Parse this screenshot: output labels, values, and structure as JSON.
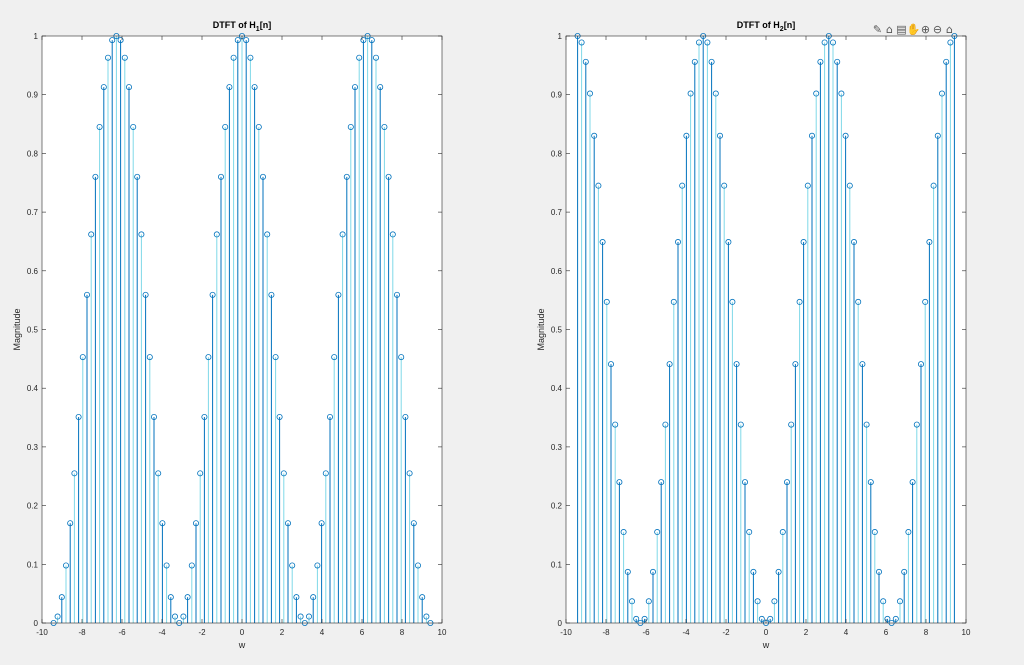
{
  "figure": {
    "toolbar": [
      {
        "name": "brush-icon",
        "glyph": "✎"
      },
      {
        "name": "data-tips-icon",
        "glyph": "⌂"
      },
      {
        "name": "export-icon",
        "glyph": "▤"
      },
      {
        "name": "pan-hand-icon",
        "glyph": "✋"
      },
      {
        "name": "zoom-in-icon",
        "glyph": "⊕"
      },
      {
        "name": "zoom-out-icon",
        "glyph": "⊖"
      },
      {
        "name": "home-icon",
        "glyph": "⌂"
      }
    ]
  },
  "chart_data": [
    {
      "type": "stem",
      "title": "DTFT of H",
      "title_sub": "1",
      "title_suffix": "[n]",
      "xlabel": "w",
      "ylabel": "Magnitude",
      "xlim": [
        -10,
        10
      ],
      "ylim": [
        0,
        1
      ],
      "xticks": [
        -10,
        -8,
        -6,
        -4,
        -2,
        0,
        2,
        4,
        6,
        8,
        10
      ],
      "yticks": [
        0,
        0.1,
        0.2,
        0.3,
        0.4,
        0.5,
        0.6,
        0.7,
        0.8,
        0.9,
        1
      ],
      "ytick_labels": [
        "0",
        "0.1",
        "0.2",
        "0.3",
        "0.4",
        "0.5",
        "0.6",
        "0.7",
        "0.8",
        "0.9",
        "1"
      ],
      "grid": false,
      "colors": {
        "stem_primary": "#0072bd",
        "stem_secondary": "#7fd9e8",
        "marker": "#0072bd",
        "axes_bg": "#ffffff"
      },
      "x": [
        -9.42,
        -9.22,
        -9.01,
        -8.8,
        -8.59,
        -8.38,
        -8.17,
        -7.96,
        -7.75,
        -7.54,
        -7.33,
        -7.12,
        -6.91,
        -6.7,
        -6.49,
        -6.28,
        -6.07,
        -5.86,
        -5.65,
        -5.44,
        -5.24,
        -5.03,
        -4.82,
        -4.61,
        -4.4,
        -4.19,
        -3.98,
        -3.77,
        -3.56,
        -3.35,
        -3.14,
        -2.93,
        -2.72,
        -2.51,
        -2.3,
        -2.09,
        -1.88,
        -1.68,
        -1.47,
        -1.26,
        -1.05,
        -0.84,
        -0.63,
        -0.42,
        -0.21,
        0.0,
        0.21,
        0.42,
        0.63,
        0.84,
        1.05,
        1.26,
        1.47,
        1.68,
        1.88,
        2.09,
        2.3,
        2.51,
        2.72,
        2.93,
        3.14,
        3.35,
        3.56,
        3.77,
        3.98,
        4.19,
        4.4,
        4.61,
        4.82,
        5.03,
        5.24,
        5.44,
        5.65,
        5.86,
        6.07,
        6.28,
        6.49,
        6.7,
        6.91,
        7.12,
        7.33,
        7.54,
        7.75,
        7.96,
        8.17,
        8.38,
        8.59,
        8.8,
        9.01,
        9.22,
        9.42
      ],
      "y": [
        0.0,
        0.011,
        0.044,
        0.098,
        0.17,
        0.255,
        0.351,
        0.453,
        0.559,
        0.662,
        0.76,
        0.845,
        0.913,
        0.963,
        0.993,
        1.0,
        0.993,
        0.963,
        0.913,
        0.845,
        0.76,
        0.662,
        0.559,
        0.453,
        0.351,
        0.255,
        0.17,
        0.098,
        0.044,
        0.011,
        0.0,
        0.011,
        0.044,
        0.098,
        0.17,
        0.255,
        0.351,
        0.453,
        0.559,
        0.662,
        0.76,
        0.845,
        0.913,
        0.963,
        0.993,
        1.0,
        0.993,
        0.963,
        0.913,
        0.845,
        0.76,
        0.662,
        0.559,
        0.453,
        0.351,
        0.255,
        0.17,
        0.098,
        0.044,
        0.011,
        0.0,
        0.011,
        0.044,
        0.098,
        0.17,
        0.255,
        0.351,
        0.453,
        0.559,
        0.662,
        0.76,
        0.845,
        0.913,
        0.963,
        0.993,
        1.0,
        0.993,
        0.963,
        0.913,
        0.845,
        0.76,
        0.662,
        0.559,
        0.453,
        0.351,
        0.255,
        0.17,
        0.098,
        0.044,
        0.011,
        0.0
      ]
    },
    {
      "type": "stem",
      "title": "DTFT of H",
      "title_sub": "2",
      "title_suffix": "[n]",
      "xlabel": "w",
      "ylabel": "Magnitude",
      "xlim": [
        -10,
        10
      ],
      "ylim": [
        0,
        1
      ],
      "xticks": [
        -10,
        -8,
        -6,
        -4,
        -2,
        0,
        2,
        4,
        6,
        8,
        10
      ],
      "yticks": [
        0,
        0.1,
        0.2,
        0.3,
        0.4,
        0.5,
        0.6,
        0.7,
        0.8,
        0.9,
        1
      ],
      "ytick_labels": [
        "0",
        "0.1",
        "0.2",
        "0.3",
        "0.4",
        "0.5",
        "0.6",
        "0.7",
        "0.8",
        "0.9",
        "1"
      ],
      "grid": false,
      "colors": {
        "stem_primary": "#0072bd",
        "stem_secondary": "#7fd9e8",
        "marker": "#0072bd",
        "axes_bg": "#ffffff"
      },
      "x": [
        -9.42,
        -9.22,
        -9.01,
        -8.8,
        -8.59,
        -8.38,
        -8.17,
        -7.96,
        -7.75,
        -7.54,
        -7.33,
        -7.12,
        -6.91,
        -6.7,
        -6.49,
        -6.28,
        -6.07,
        -5.86,
        -5.65,
        -5.44,
        -5.24,
        -5.03,
        -4.82,
        -4.61,
        -4.4,
        -4.19,
        -3.98,
        -3.77,
        -3.56,
        -3.35,
        -3.14,
        -2.93,
        -2.72,
        -2.51,
        -2.3,
        -2.09,
        -1.88,
        -1.68,
        -1.47,
        -1.26,
        -1.05,
        -0.84,
        -0.63,
        -0.42,
        -0.21,
        0.0,
        0.21,
        0.42,
        0.63,
        0.84,
        1.05,
        1.26,
        1.47,
        1.68,
        1.88,
        2.09,
        2.3,
        2.51,
        2.72,
        2.93,
        3.14,
        3.35,
        3.56,
        3.77,
        3.98,
        4.19,
        4.4,
        4.61,
        4.82,
        5.03,
        5.24,
        5.44,
        5.65,
        5.86,
        6.07,
        6.28,
        6.49,
        6.7,
        6.91,
        7.12,
        7.33,
        7.54,
        7.75,
        7.96,
        8.17,
        8.38,
        8.59,
        8.8,
        9.01,
        9.22,
        9.42
      ],
      "y": [
        1.0,
        0.989,
        0.956,
        0.902,
        0.83,
        0.745,
        0.649,
        0.547,
        0.441,
        0.338,
        0.24,
        0.155,
        0.087,
        0.037,
        0.007,
        0.0,
        0.007,
        0.037,
        0.087,
        0.155,
        0.24,
        0.338,
        0.441,
        0.547,
        0.649,
        0.745,
        0.83,
        0.902,
        0.956,
        0.989,
        1.0,
        0.989,
        0.956,
        0.902,
        0.83,
        0.745,
        0.649,
        0.547,
        0.441,
        0.338,
        0.24,
        0.155,
        0.087,
        0.037,
        0.007,
        0.0,
        0.007,
        0.037,
        0.087,
        0.155,
        0.24,
        0.338,
        0.441,
        0.547,
        0.649,
        0.745,
        0.83,
        0.902,
        0.956,
        0.989,
        1.0,
        0.989,
        0.956,
        0.902,
        0.83,
        0.745,
        0.649,
        0.547,
        0.441,
        0.338,
        0.24,
        0.155,
        0.087,
        0.037,
        0.007,
        0.0,
        0.007,
        0.037,
        0.087,
        0.155,
        0.24,
        0.338,
        0.441,
        0.547,
        0.649,
        0.745,
        0.83,
        0.902,
        0.956,
        0.989,
        1.0
      ]
    }
  ]
}
